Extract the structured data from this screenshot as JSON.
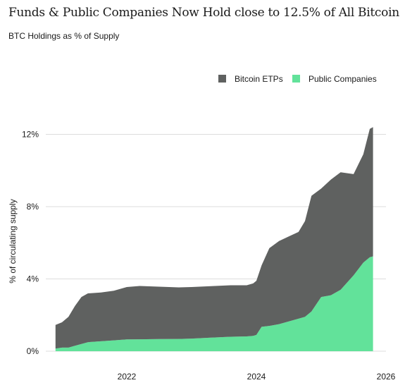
{
  "header": {
    "title": "Funds & Public Companies Now Hold close to 12.5% of All Bitcoin",
    "subtitle": "BTC Holdings as % of Supply"
  },
  "colors": {
    "etp": "#5f6160",
    "public_companies": "#62e29a",
    "grid": "#dddddd",
    "text": "#1a1a1a"
  },
  "chart_data": {
    "type": "area",
    "stacked": true,
    "title": "Funds & Public Companies Now Hold close to 12.5% of All Bitcoin",
    "subtitle": "BTC Holdings as % of Supply",
    "xlabel": "",
    "ylabel": "% of circulating supply",
    "xlim": [
      2020.75,
      2026.0
    ],
    "ylim": [
      0,
      12.8
    ],
    "x_ticks": [
      {
        "value": 2022,
        "label": "2022"
      },
      {
        "value": 2024,
        "label": "2024"
      },
      {
        "value": 2026,
        "label": "2026"
      }
    ],
    "y_ticks": [
      {
        "value": 0,
        "label": "0%"
      },
      {
        "value": 4,
        "label": "4%"
      },
      {
        "value": 8,
        "label": "8%"
      },
      {
        "value": 12,
        "label": "12%"
      }
    ],
    "grid": true,
    "legend_position": "top-right",
    "x": [
      2020.9,
      2021.0,
      2021.1,
      2021.2,
      2021.3,
      2021.4,
      2021.6,
      2021.8,
      2022.0,
      2022.2,
      2022.5,
      2022.8,
      2023.0,
      2023.3,
      2023.6,
      2023.85,
      2023.95,
      2024.0,
      2024.08,
      2024.2,
      2024.35,
      2024.5,
      2024.65,
      2024.75,
      2024.85,
      2025.0,
      2025.15,
      2025.3,
      2025.5,
      2025.65,
      2025.75,
      2025.8
    ],
    "series": [
      {
        "name": "Public Companies",
        "color_key": "public_companies",
        "values": [
          0.15,
          0.2,
          0.2,
          0.3,
          0.4,
          0.5,
          0.55,
          0.6,
          0.65,
          0.66,
          0.67,
          0.68,
          0.7,
          0.75,
          0.8,
          0.82,
          0.85,
          0.9,
          1.35,
          1.4,
          1.5,
          1.65,
          1.8,
          1.9,
          2.2,
          3.0,
          3.1,
          3.4,
          4.2,
          4.9,
          5.2,
          5.25
        ]
      },
      {
        "name": "Bitcoin ETPs",
        "color_key": "etp",
        "values": [
          1.3,
          1.4,
          1.7,
          2.2,
          2.6,
          2.7,
          2.7,
          2.75,
          2.9,
          2.95,
          2.9,
          2.85,
          2.85,
          2.85,
          2.85,
          2.83,
          2.9,
          3.0,
          3.4,
          4.3,
          4.6,
          4.7,
          4.8,
          5.3,
          6.4,
          6.0,
          6.4,
          6.5,
          5.6,
          6.0,
          7.1,
          7.15
        ]
      }
    ]
  }
}
